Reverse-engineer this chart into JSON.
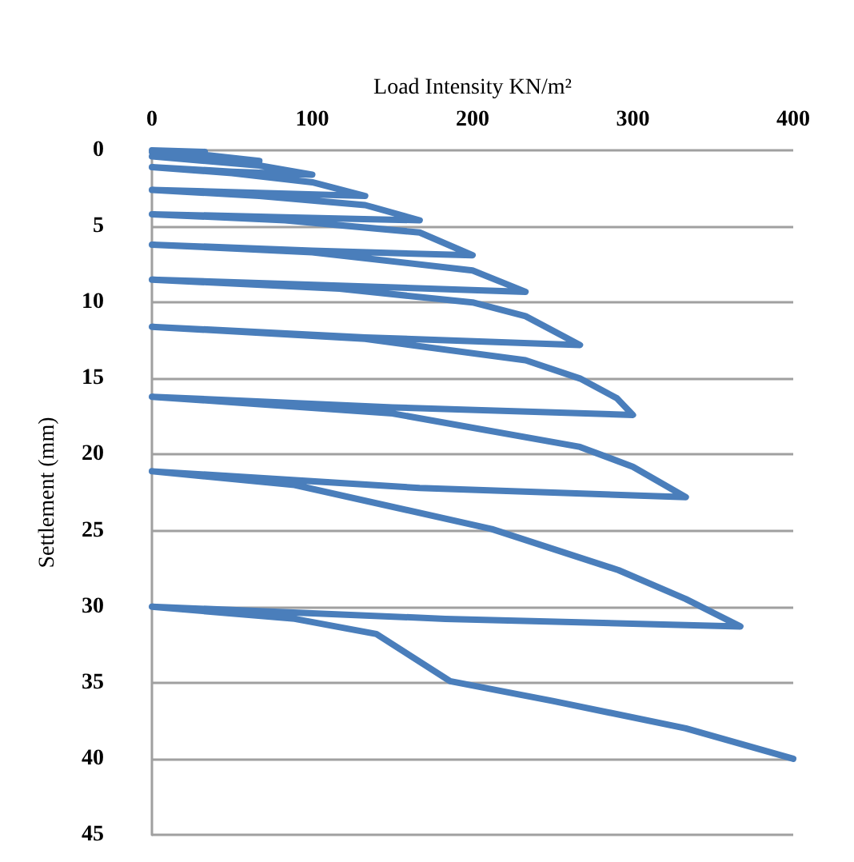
{
  "chart_data": {
    "type": "line",
    "xlabel": "Load Intensity KN/m²",
    "ylabel": "Settlement (mm)",
    "xlim": [
      0,
      400
    ],
    "xticks": [
      0,
      100,
      200,
      300,
      400
    ],
    "ylim": [
      45,
      0
    ],
    "yticks": [
      0,
      5,
      10,
      15,
      20,
      25,
      30,
      35,
      40,
      45
    ],
    "grid": "y",
    "marker": "none",
    "line_style": "solid",
    "series": [
      {
        "color": "#4a7ebb",
        "x": [
          0,
          33,
          0,
          33,
          67,
          0,
          67,
          100,
          50,
          0,
          50,
          100,
          133,
          67,
          0,
          67,
          133,
          167,
          83,
          0,
          83,
          167,
          200,
          100,
          0,
          100,
          200,
          233,
          117,
          0,
          117,
          200,
          233,
          267,
          133,
          0,
          133,
          233,
          267,
          290,
          300,
          150,
          0,
          150,
          267,
          300,
          333,
          167,
          0,
          89,
          212,
          291,
          333,
          367,
          183,
          0,
          89,
          140,
          186,
          250,
          333,
          400
        ],
        "values": [
          0,
          0.1,
          0.1,
          0.3,
          0.7,
          0.4,
          1.0,
          1.6,
          1.4,
          1.1,
          1.5,
          2.1,
          3.0,
          2.8,
          2.6,
          3.0,
          3.6,
          4.6,
          4.4,
          4.2,
          4.6,
          5.4,
          6.9,
          6.6,
          6.2,
          6.7,
          7.9,
          9.3,
          8.9,
          8.5,
          9.1,
          10.0,
          10.9,
          12.8,
          12.3,
          11.6,
          12.4,
          13.8,
          15.0,
          16.3,
          17.4,
          16.9,
          16.2,
          17.3,
          19.5,
          20.8,
          22.8,
          22.2,
          21.1,
          22.0,
          24.9,
          27.6,
          29.5,
          31.3,
          30.8,
          30.0,
          30.8,
          31.8,
          34.9,
          36.2,
          38.0,
          40
        ]
      }
    ]
  }
}
